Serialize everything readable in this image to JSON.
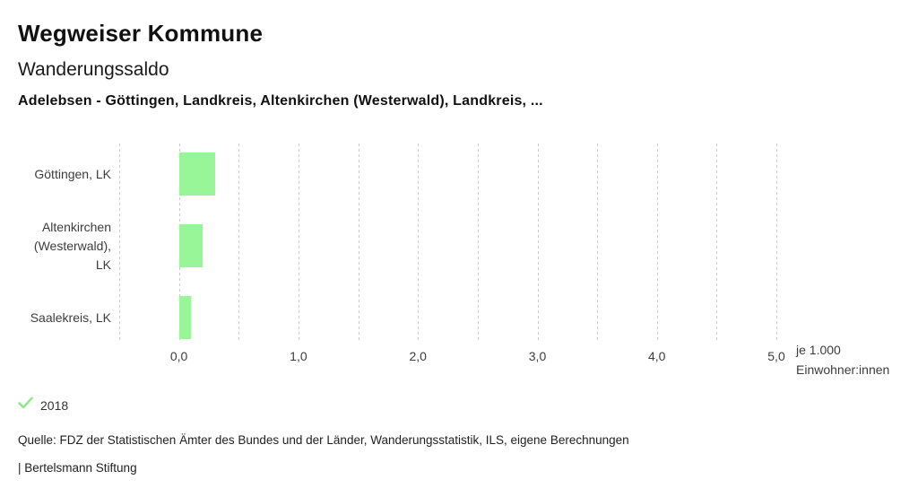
{
  "header": {
    "app_title": "Wegweiser Kommune",
    "indicator_title": "Wanderungssaldo",
    "comparison_subtitle": "Adelebsen - Göttingen, Landkreis, Altenkirchen (Westerwald), Landkreis, ..."
  },
  "chart_data": {
    "type": "bar",
    "orientation": "horizontal",
    "title": "Wanderungssaldo",
    "categories": [
      "Göttingen, LK",
      "Altenkirchen (Westerwald), LK",
      "Saalekreis, LK"
    ],
    "category_label_lines": [
      [
        "Göttingen, LK"
      ],
      [
        "Altenkirchen",
        "(Westerwald),",
        "LK"
      ],
      [
        "Saalekreis, LK"
      ]
    ],
    "series": [
      {
        "name": "2018",
        "values": [
          0.3,
          0.2,
          0.1
        ]
      }
    ],
    "xlabel": "je 1.000 Einwohner:innen",
    "unit_label_lines": [
      "je 1.000",
      "Einwohner:innen"
    ],
    "xlim": [
      -0.5,
      5.0
    ],
    "xticks": [
      0,
      1,
      2,
      3,
      4,
      5
    ],
    "xtick_labels": [
      "0,0",
      "1,0",
      "2,0",
      "3,0",
      "4,0",
      "5,0"
    ],
    "gridline_step": 0.5,
    "grid": true,
    "legend_position": "bottom-left",
    "bar_color": "#98f598"
  },
  "legend": {
    "items": [
      {
        "label": "2018",
        "marker": "check-icon",
        "color": "#8fe88f"
      }
    ]
  },
  "footer": {
    "source": "Quelle: FDZ der Statistischen Ämter des Bundes und der Länder, Wanderungsstatistik, ILS, eigene Berechnungen",
    "branding": "| Bertelsmann Stiftung"
  },
  "colors": {
    "bar": "#98f598",
    "legend_check": "#8fe88f",
    "gridline": "#c9c9c9",
    "text_primary": "#111111",
    "text_secondary": "#3c3c3c",
    "background": "#ffffff"
  }
}
